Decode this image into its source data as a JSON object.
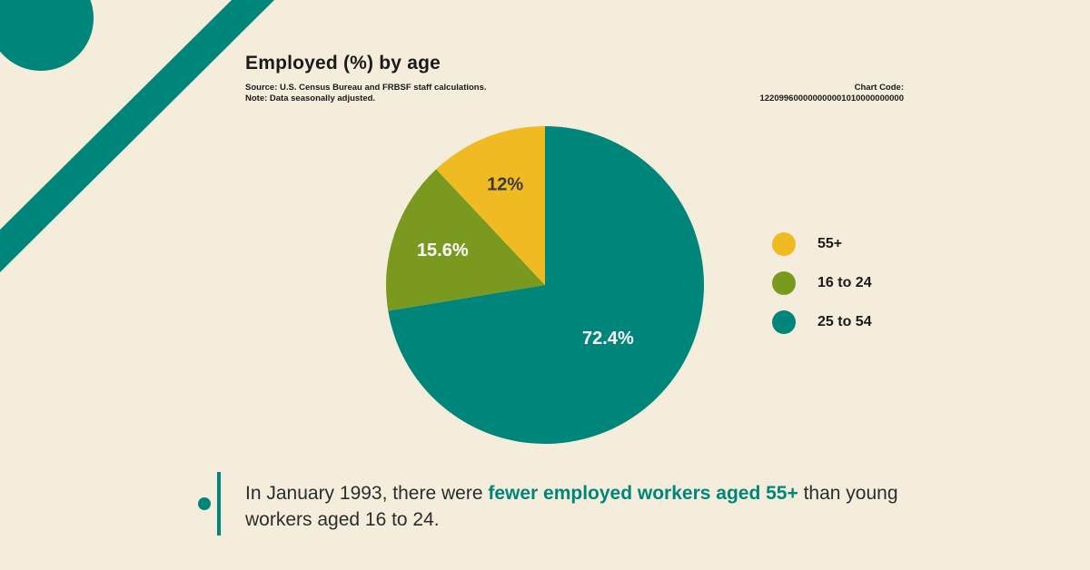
{
  "colors": {
    "background": "#f4eddc",
    "teal": "#00857a",
    "olive": "#7a9a1f",
    "gold": "#f0bb22"
  },
  "header": {
    "title": "Employed (%) by age",
    "source_line": "Source: U.S. Census Bureau and FRBSF staff calculations.",
    "note_line": "Note: Data seasonally adjusted.",
    "chart_code_label": "Chart Code:",
    "chart_code_value": "122099600000000001010000000000"
  },
  "chart_data": {
    "type": "pie",
    "title": "Employed (%) by age",
    "slices": [
      {
        "label": "25 to 54",
        "value": 72.4,
        "display": "72.4%",
        "color": "#00857a",
        "label_color": "#ffffff"
      },
      {
        "label": "16 to 24",
        "value": 15.6,
        "display": "15.6%",
        "color": "#7a9a1f",
        "label_color": "#ffffff"
      },
      {
        "label": "55+",
        "value": 12,
        "display": "12%",
        "color": "#f0bb22",
        "label_color": "#3a3a3a"
      }
    ],
    "legend": [
      {
        "label": "55+",
        "color": "#f0bb22"
      },
      {
        "label": "16 to 24",
        "color": "#7a9a1f"
      },
      {
        "label": "25 to 54",
        "color": "#00857a"
      }
    ],
    "legend_position": "right"
  },
  "footnote": {
    "text_before": "In January 1993, there were ",
    "highlight": "fewer employed workers aged 55+",
    "text_after": " than young workers aged 16 to 24."
  }
}
